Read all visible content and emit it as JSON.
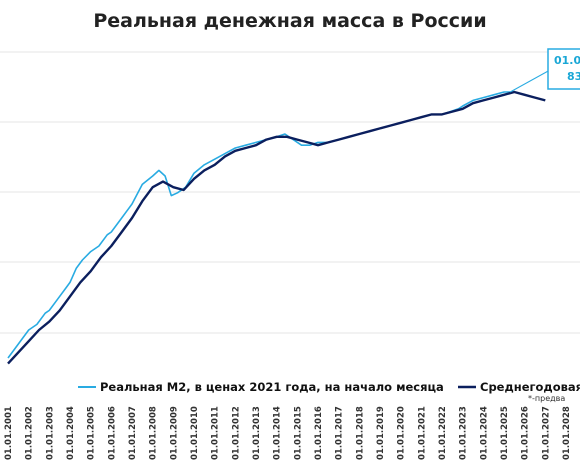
{
  "chart_data": {
    "type": "line",
    "title": "Реальная денежная масса в России",
    "x_tick_labels": [
      "01.01.2001",
      "01.01.2002",
      "01.01.2003",
      "01.01.2004",
      "01.01.2005",
      "01.01.2006",
      "01.01.2007",
      "01.01.2008",
      "01.01.2009",
      "01.01.2010",
      "01.01.2011",
      "01.01.2012",
      "01.01.2013",
      "01.01.2014",
      "01.01.2015",
      "01.01.2016",
      "01.01.2017",
      "01.01.2018",
      "01.01.2019",
      "01.01.2020",
      "01.01.2021",
      "01.01.2022",
      "01.01.2023",
      "01.01.2024",
      "01.01.2025",
      "01.01.2026",
      "01.01.2027",
      "01.01.2028"
    ],
    "xlim": [
      2001,
      2028
    ],
    "grid": true,
    "legend_position": "bottom",
    "note": "*-предва",
    "callout": {
      "date_text": "01.0",
      "value_text": "83"
    },
    "series": [
      {
        "name": "Реальная М2, в ценах 2021 года, на начало месяца",
        "color": "#29abe2",
        "points": [
          [
            2001.0,
            0.05
          ],
          [
            2001.3,
            0.08
          ],
          [
            2001.7,
            0.12
          ],
          [
            2002.0,
            0.15
          ],
          [
            2002.4,
            0.17
          ],
          [
            2002.8,
            0.21
          ],
          [
            2003.0,
            0.22
          ],
          [
            2003.4,
            0.26
          ],
          [
            2003.8,
            0.3
          ],
          [
            2004.0,
            0.32
          ],
          [
            2004.3,
            0.37
          ],
          [
            2004.6,
            0.4
          ],
          [
            2005.0,
            0.43
          ],
          [
            2005.4,
            0.45
          ],
          [
            2005.8,
            0.49
          ],
          [
            2006.0,
            0.5
          ],
          [
            2006.5,
            0.55
          ],
          [
            2007.0,
            0.6
          ],
          [
            2007.5,
            0.67
          ],
          [
            2008.0,
            0.7
          ],
          [
            2008.3,
            0.72
          ],
          [
            2008.6,
            0.7
          ],
          [
            2008.9,
            0.63
          ],
          [
            2009.2,
            0.64
          ],
          [
            2009.6,
            0.66
          ],
          [
            2010.0,
            0.71
          ],
          [
            2010.5,
            0.74
          ],
          [
            2011.0,
            0.76
          ],
          [
            2011.5,
            0.78
          ],
          [
            2012.0,
            0.8
          ],
          [
            2012.5,
            0.81
          ],
          [
            2013.0,
            0.82
          ],
          [
            2013.5,
            0.83
          ],
          [
            2014.0,
            0.84
          ],
          [
            2014.4,
            0.85
          ],
          [
            2014.8,
            0.83
          ],
          [
            2015.2,
            0.81
          ],
          [
            2015.6,
            0.81
          ],
          [
            2016.0,
            0.82
          ],
          [
            2016.5,
            0.82
          ],
          [
            2017.0,
            0.83
          ],
          [
            2017.5,
            0.84
          ],
          [
            2018.0,
            0.85
          ],
          [
            2018.5,
            0.86
          ],
          [
            2019.0,
            0.87
          ],
          [
            2019.5,
            0.88
          ],
          [
            2020.0,
            0.89
          ],
          [
            2020.5,
            0.9
          ],
          [
            2021.0,
            0.91
          ],
          [
            2021.5,
            0.92
          ],
          [
            2022.0,
            0.92
          ],
          [
            2022.4,
            0.93
          ],
          [
            2022.8,
            0.94
          ],
          [
            2023.0,
            0.95
          ],
          [
            2023.5,
            0.97
          ],
          [
            2024.0,
            0.98
          ],
          [
            2024.5,
            0.99
          ],
          [
            2025.0,
            1.0
          ],
          [
            2025.3,
            1.0
          ]
        ]
      },
      {
        "name": "Среднегодовая М",
        "color": "#0b1f5e",
        "points": [
          [
            2001.0,
            0.03
          ],
          [
            2001.5,
            0.07
          ],
          [
            2002.0,
            0.11
          ],
          [
            2002.5,
            0.15
          ],
          [
            2003.0,
            0.18
          ],
          [
            2003.5,
            0.22
          ],
          [
            2004.0,
            0.27
          ],
          [
            2004.5,
            0.32
          ],
          [
            2005.0,
            0.36
          ],
          [
            2005.5,
            0.41
          ],
          [
            2006.0,
            0.45
          ],
          [
            2006.5,
            0.5
          ],
          [
            2007.0,
            0.55
          ],
          [
            2007.5,
            0.61
          ],
          [
            2008.0,
            0.66
          ],
          [
            2008.5,
            0.68
          ],
          [
            2009.0,
            0.66
          ],
          [
            2009.5,
            0.65
          ],
          [
            2010.0,
            0.69
          ],
          [
            2010.5,
            0.72
          ],
          [
            2011.0,
            0.74
          ],
          [
            2011.5,
            0.77
          ],
          [
            2012.0,
            0.79
          ],
          [
            2012.5,
            0.8
          ],
          [
            2013.0,
            0.81
          ],
          [
            2013.5,
            0.83
          ],
          [
            2014.0,
            0.84
          ],
          [
            2014.5,
            0.84
          ],
          [
            2015.0,
            0.83
          ],
          [
            2015.5,
            0.82
          ],
          [
            2016.0,
            0.81
          ],
          [
            2016.5,
            0.82
          ],
          [
            2017.0,
            0.83
          ],
          [
            2017.5,
            0.84
          ],
          [
            2018.0,
            0.85
          ],
          [
            2018.5,
            0.86
          ],
          [
            2019.0,
            0.87
          ],
          [
            2019.5,
            0.88
          ],
          [
            2020.0,
            0.89
          ],
          [
            2020.5,
            0.9
          ],
          [
            2021.0,
            0.91
          ],
          [
            2021.5,
            0.92
          ],
          [
            2022.0,
            0.92
          ],
          [
            2022.5,
            0.93
          ],
          [
            2023.0,
            0.94
          ],
          [
            2023.5,
            0.96
          ],
          [
            2024.0,
            0.97
          ],
          [
            2024.5,
            0.98
          ],
          [
            2025.0,
            0.99
          ],
          [
            2025.5,
            1.0
          ],
          [
            2026.0,
            0.99
          ],
          [
            2026.5,
            0.98
          ],
          [
            2027.0,
            0.97
          ]
        ]
      }
    ]
  }
}
